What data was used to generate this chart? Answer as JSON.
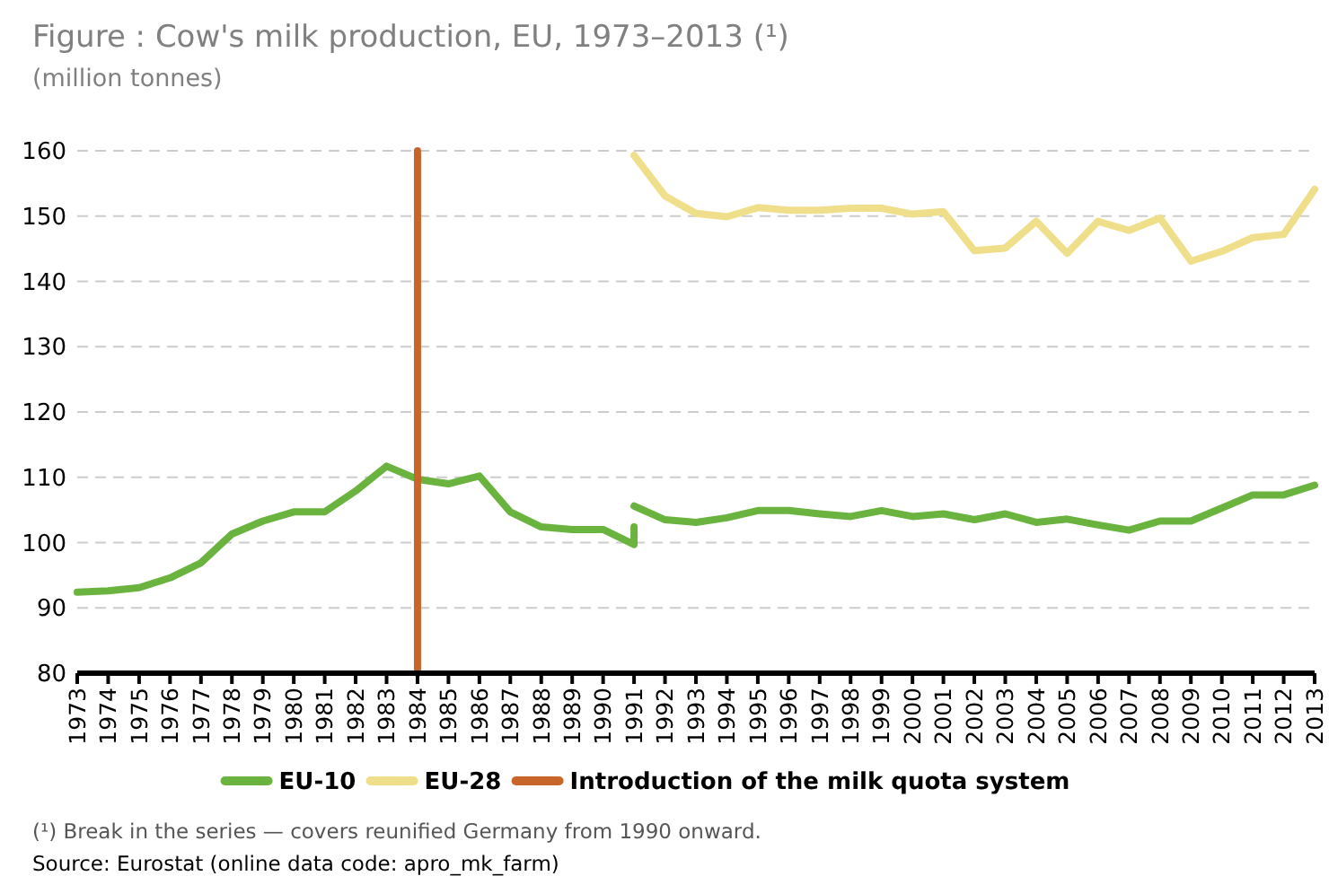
{
  "chart_data": {
    "type": "line",
    "title": "Figure : Cow's milk production, EU, 1973–2013 (¹)",
    "subtitle": "(million tonnes)",
    "xlim": [
      1973,
      2013
    ],
    "xticks": [
      1973,
      1974,
      1975,
      1976,
      1977,
      1978,
      1979,
      1980,
      1981,
      1982,
      1983,
      1984,
      1985,
      1986,
      1987,
      1988,
      1989,
      1990,
      1991,
      1992,
      1993,
      1994,
      1995,
      1996,
      1997,
      1998,
      1999,
      2000,
      2001,
      2002,
      2003,
      2004,
      2005,
      2006,
      2007,
      2008,
      2009,
      2010,
      2011,
      2012,
      2013
    ],
    "ylim": [
      80,
      160
    ],
    "yticks": [
      80,
      90,
      100,
      110,
      120,
      130,
      140,
      150,
      160
    ],
    "grid": "y",
    "legend": "bottom",
    "line_style": "solid",
    "marker": "none",
    "series": [
      {
        "name": "EU-10",
        "color": "#6ab33e",
        "x": [
          1973,
          1974,
          1975,
          1976,
          1977,
          1978,
          1979,
          1980,
          1981,
          1982,
          1983,
          1984,
          1985,
          1986,
          1987,
          1988,
          1989,
          1990,
          1991,
          1991
        ],
        "values": [
          92.4,
          92.6,
          93.1,
          94.6,
          96.9,
          101.3,
          103.3,
          104.7,
          104.7,
          107.9,
          111.7,
          109.7,
          109.0,
          110.2,
          104.7,
          102.4,
          102.0,
          102.0,
          99.7,
          102.4
        ]
      },
      {
        "color": "#6ab33e",
        "x": [
          1991,
          1992,
          1993,
          1994,
          1995,
          1996,
          1997,
          1998,
          1999,
          2000,
          2001,
          2002,
          2003,
          2004,
          2005,
          2006,
          2007,
          2008,
          2009,
          2010,
          2011,
          2012,
          2013
        ],
        "values": [
          105.6,
          103.5,
          103.1,
          103.8,
          104.9,
          104.9,
          104.4,
          104.0,
          104.9,
          104.0,
          104.4,
          103.5,
          104.4,
          103.1,
          103.6,
          102.7,
          101.9,
          103.3,
          103.3,
          105.3,
          107.3,
          107.3,
          108.8
        ]
      },
      {
        "name": "EU-28",
        "color": "#f0df8a",
        "x": [
          1991,
          1992,
          1993,
          1994,
          1995,
          1996,
          1997,
          1998,
          1999,
          2000,
          2001,
          2002,
          2003,
          2004,
          2005,
          2006,
          2007,
          2008,
          2009,
          2010,
          2011,
          2012,
          2013
        ],
        "values": [
          159.3,
          153.1,
          150.4,
          149.9,
          151.3,
          150.9,
          150.9,
          151.2,
          151.2,
          150.3,
          150.7,
          144.7,
          145.1,
          149.2,
          144.3,
          149.2,
          147.8,
          149.7,
          143.1,
          144.6,
          146.7,
          147.2,
          154.1
        ]
      }
    ],
    "ref_lines": [
      {
        "axis": "x",
        "value": 1984,
        "label": "Introduction of the milk quota system",
        "color": "#c8662a"
      }
    ],
    "annotations": [
      "(¹) Break in the series — covers reunified Germany from 1990 onward.",
      "Source: Eurostat (online data code: apro_mk_farm)"
    ]
  }
}
